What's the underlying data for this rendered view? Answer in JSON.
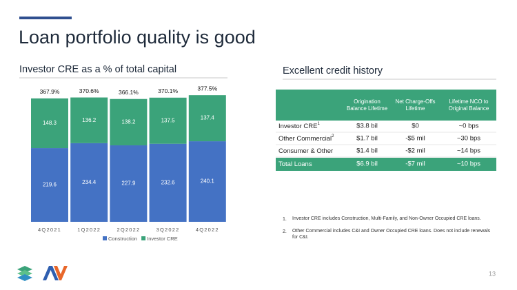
{
  "title": "Loan portfolio quality is good",
  "left_subtitle": "Investor CRE as a % of total capital",
  "right_subtitle": "Excellent credit history",
  "chart_data": {
    "type": "stacked_bar",
    "categories": [
      "4Q2021",
      "1Q2022",
      "2Q2022",
      "3Q2022",
      "4Q2022"
    ],
    "series": [
      {
        "name": "Construction",
        "color": "#4472c4",
        "values": [
          219.6,
          234.4,
          227.9,
          232.6,
          240.1
        ]
      },
      {
        "name": "Investor CRE",
        "color": "#3ba37a",
        "values": [
          148.3,
          136.2,
          138.2,
          137.5,
          137.4
        ]
      }
    ],
    "totals": {
      "values": [
        367.9,
        370.6,
        366.1,
        370.1,
        377.5
      ],
      "value_labels": [
        "367.9%",
        "370.6%",
        "366.1%",
        "370.1%",
        "377.5%"
      ]
    },
    "legend": "bottom"
  },
  "table": {
    "header": [
      "Origination Balance Lifetime",
      "Net Charge-Offs Lifetime",
      "Lifetime NCO to Original Balance"
    ],
    "rows": [
      {
        "label": "Investor CRE",
        "note": "1",
        "cells": [
          "$3.8 bil",
          "$0",
          "~0 bps"
        ]
      },
      {
        "label": "Other Commercial",
        "note": "2",
        "cells": [
          "$1.7 bil",
          "-$5 mil",
          "~30 bps"
        ]
      },
      {
        "label": "Consumer & Other",
        "cells": [
          "$1.4 bil",
          "-$2 mil",
          "~14 bps"
        ]
      },
      {
        "label": "Total Loans",
        "cells": [
          "$6.9 bil",
          "-$7 mil",
          "~10 bps"
        ]
      }
    ]
  },
  "footnotes": [
    {
      "marker": "1.",
      "text": "Investor CRE includes Construction, Multi-Family, and Non-Owner Occupied CRE loans."
    },
    {
      "marker": "2.",
      "text": "Other Commercial includes C&I and Owner Occupied CRE loans. Does not include renewals for C&I."
    }
  ],
  "page_number": "13"
}
